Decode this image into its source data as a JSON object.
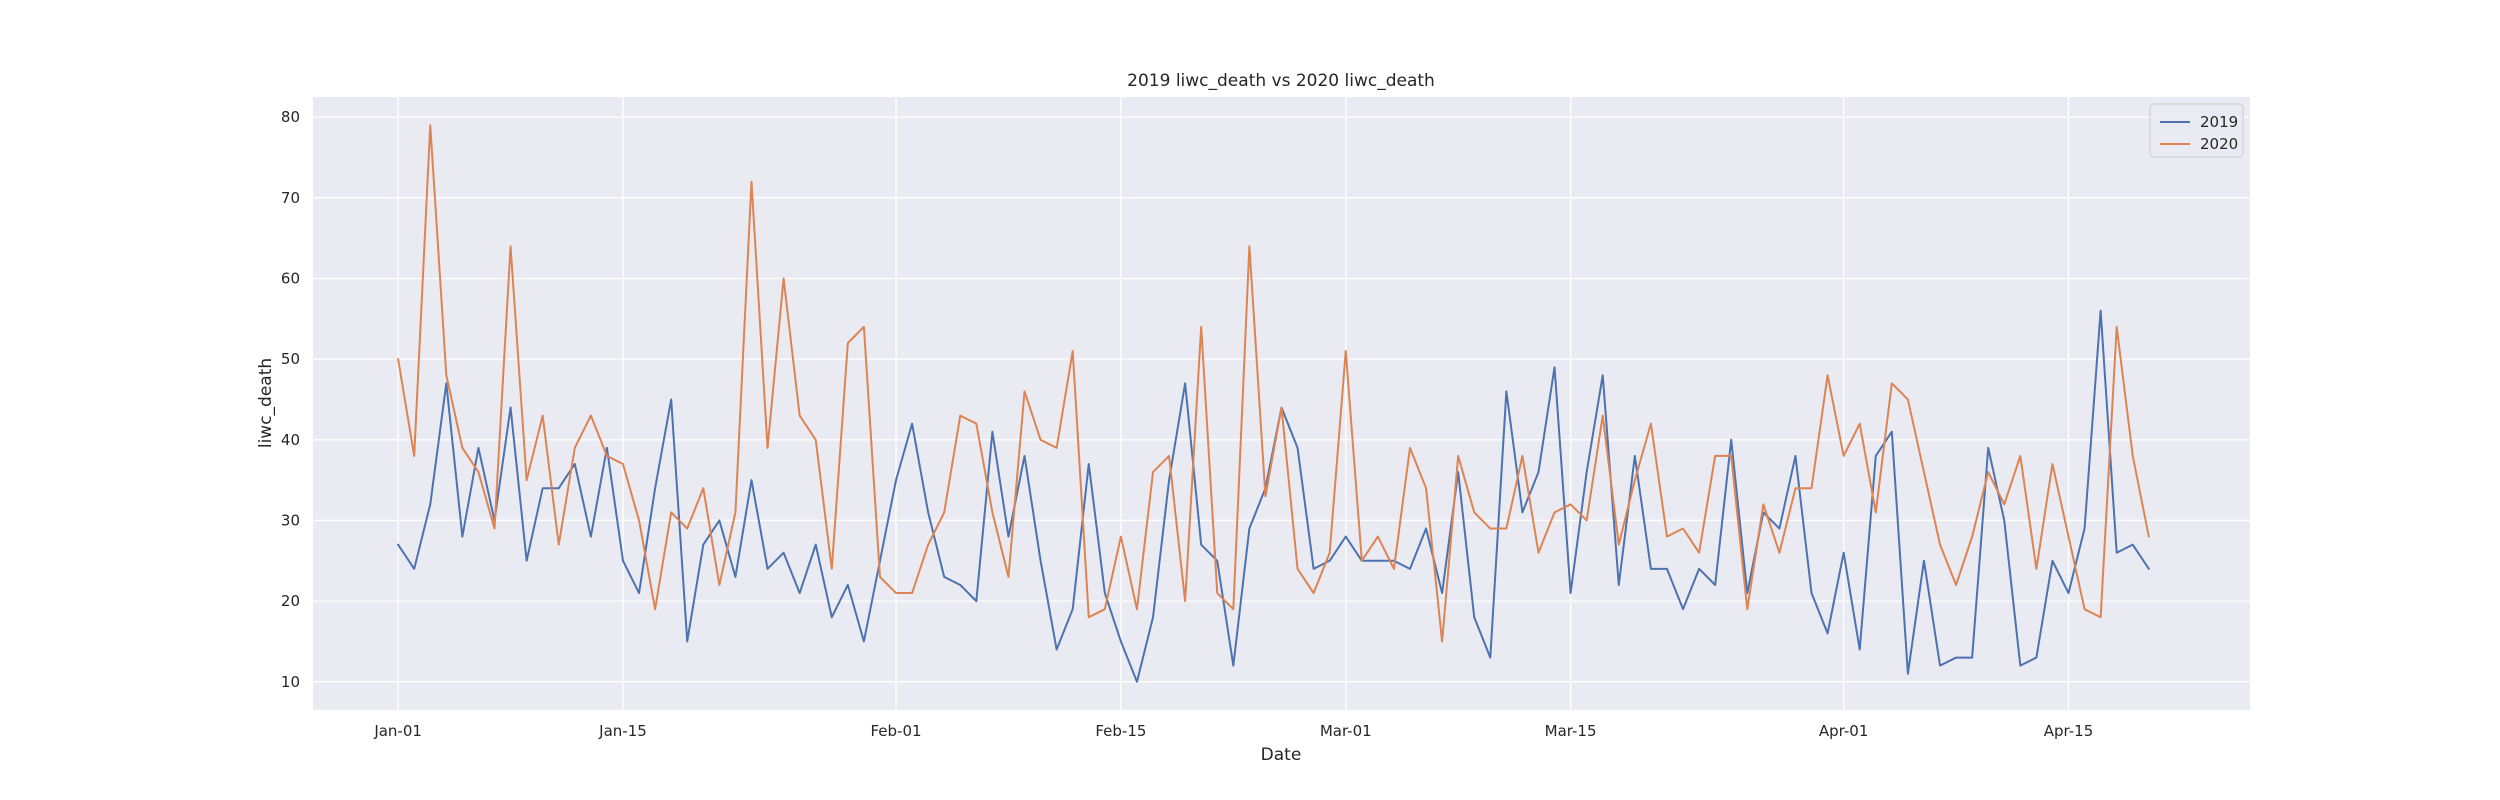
{
  "chart_data": {
    "type": "line",
    "title": "2019 liwc_death vs 2020 liwc_death",
    "xlabel": "Date",
    "ylabel": "liwc_death",
    "x_start": "Jan-01",
    "x_step_days": 1,
    "x_ticks": [
      {
        "day": 0,
        "label": "Jan-01"
      },
      {
        "day": 14,
        "label": "Jan-15"
      },
      {
        "day": 31,
        "label": "Feb-01"
      },
      {
        "day": 45,
        "label": "Feb-15"
      },
      {
        "day": 59,
        "label": "Mar-01"
      },
      {
        "day": 73,
        "label": "Mar-15"
      },
      {
        "day": 90,
        "label": "Apr-01"
      },
      {
        "day": 104,
        "label": "Apr-15"
      }
    ],
    "y_ticks": [
      10,
      20,
      30,
      40,
      50,
      60,
      70,
      80
    ],
    "xlim": [
      -5.3,
      115.3
    ],
    "ylim": [
      6.5,
      82.5
    ],
    "grid": true,
    "legend_position": "top-right",
    "series": [
      {
        "name": "2019",
        "color": "#4c72b0",
        "values": [
          27,
          24,
          32,
          47,
          28,
          39,
          30,
          44,
          25,
          34,
          34,
          37,
          28,
          39,
          25,
          21,
          34,
          45,
          15,
          27,
          30,
          23,
          35,
          24,
          26,
          21,
          27,
          18,
          22,
          15,
          25,
          35,
          42,
          31,
          23,
          22,
          20,
          41,
          28,
          38,
          25,
          14,
          19,
          37,
          21,
          15,
          10,
          18,
          35,
          47,
          27,
          25,
          12,
          29,
          34,
          44,
          39,
          24,
          25,
          28,
          25,
          25,
          25,
          24,
          29,
          21,
          36,
          18,
          13,
          46,
          31,
          36,
          49,
          21,
          36,
          48,
          22,
          38,
          24,
          24,
          19,
          24,
          22,
          40,
          21,
          31,
          29,
          38,
          21,
          16,
          26,
          14,
          38,
          41,
          11,
          25,
          12,
          13,
          13,
          39,
          30,
          12,
          13,
          25,
          21,
          29,
          56,
          26,
          27,
          24
        ]
      },
      {
        "name": "2020",
        "color": "#dd8452",
        "values": [
          50,
          38,
          79,
          48,
          39,
          36,
          29,
          64,
          35,
          43,
          27,
          39,
          43,
          38,
          37,
          30,
          19,
          31,
          29,
          34,
          22,
          31,
          72,
          39,
          60,
          43,
          40,
          24,
          52,
          54,
          23,
          21,
          21,
          27,
          31,
          43,
          42,
          31,
          23,
          46,
          40,
          39,
          51,
          18,
          19,
          28,
          19,
          36,
          38,
          20,
          54,
          21,
          19,
          64,
          33,
          44,
          24,
          21,
          26,
          51,
          25,
          28,
          24,
          39,
          34,
          15,
          38,
          31,
          29,
          29,
          38,
          26,
          31,
          32,
          30,
          43,
          27,
          35,
          42,
          28,
          29,
          26,
          38,
          38,
          19,
          32,
          26,
          34,
          34,
          48,
          38,
          42,
          31,
          47,
          45,
          36,
          27,
          22,
          28,
          36,
          32,
          38,
          24,
          37,
          28,
          19,
          18,
          54,
          38,
          28
        ]
      }
    ]
  }
}
